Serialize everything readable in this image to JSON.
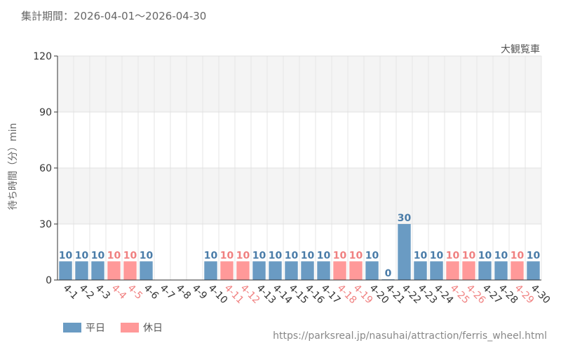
{
  "header": {
    "period": "集計期間：2026-04-01～2026-04-30",
    "attraction": "大観覧車"
  },
  "footer": {
    "source_url": "https://parksreal.jp/nasuhai/attraction/ferris_wheel.html"
  },
  "legend": [
    {
      "label": "平日",
      "color": "#6a9bc3"
    },
    {
      "label": "休日",
      "color": "#ff9999"
    }
  ],
  "colors": {
    "weekday": "#6a9bc3",
    "holiday": "#ff9999",
    "weekday_text": "#4a7ca8",
    "holiday_text": "#f08080",
    "axis_text": "#555555"
  },
  "chart_data": {
    "type": "bar",
    "ylabel": "待ち時間（分）min",
    "ylim": [
      0,
      120
    ],
    "yticks": [
      0,
      30,
      60,
      90,
      120
    ],
    "grid": true,
    "legend_position": "bottom-left",
    "categories": [
      "4-1",
      "4-2",
      "4-3",
      "4-4",
      "4-5",
      "4-6",
      "4-7",
      "4-8",
      "4-9",
      "4-10",
      "4-11",
      "4-12",
      "4-13",
      "4-14",
      "4-15",
      "4-16",
      "4-17",
      "4-18",
      "4-19",
      "4-20",
      "4-21",
      "4-22",
      "4-23",
      "4-24",
      "4-25",
      "4-26",
      "4-27",
      "4-28",
      "4-29",
      "4-30"
    ],
    "values": [
      10,
      10,
      10,
      10,
      10,
      10,
      null,
      null,
      null,
      10,
      10,
      10,
      10,
      10,
      10,
      10,
      10,
      10,
      10,
      10,
      0,
      30,
      10,
      10,
      10,
      10,
      10,
      10,
      10,
      10
    ],
    "day_type": [
      "weekday",
      "weekday",
      "weekday",
      "holiday",
      "holiday",
      "weekday",
      "weekday",
      "weekday",
      "weekday",
      "weekday",
      "holiday",
      "holiday",
      "weekday",
      "weekday",
      "weekday",
      "weekday",
      "weekday",
      "holiday",
      "holiday",
      "weekday",
      "weekday",
      "weekday",
      "weekday",
      "weekday",
      "holiday",
      "holiday",
      "weekday",
      "weekday",
      "holiday",
      "weekday"
    ],
    "series": [
      {
        "name": "平日",
        "day_type": "weekday"
      },
      {
        "name": "休日",
        "day_type": "holiday"
      }
    ]
  }
}
